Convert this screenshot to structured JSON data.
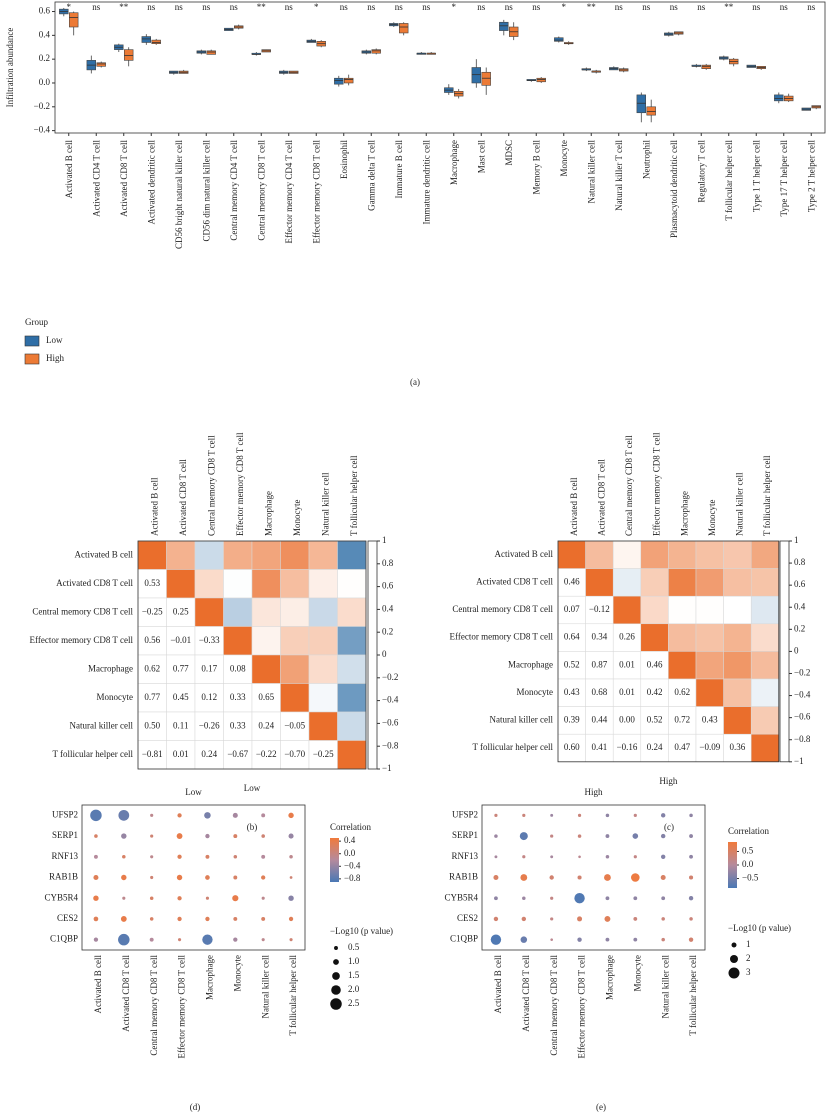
{
  "chart_data": [
    {
      "type": "box",
      "ylabel": "Infiltration abundance",
      "caption": "(a)",
      "categories": [
        "Activated B cell",
        "Activated CD4 T cell",
        "Activated CD8 T cell",
        "Activated dendritic cell",
        "CD56 bright natural killer cell",
        "CD56 dim natural killer cell",
        "Central memory CD4 T cell",
        "Central memory CD8 T cell",
        "Effector memory CD4 T cell",
        "Effector memory CD8 T cell",
        "Eosinophil",
        "Gamma delta T cell",
        "Immature B cell",
        "Immature dendritic cell",
        "Macrophage",
        "Mast cell",
        "MDSC",
        "Memory B cell",
        "Monocyte",
        "Natural killer cell",
        "Natural killer T cell",
        "Neutrophil",
        "Plasmacytoid dendritic cell",
        "Regulatory T cell",
        "T follicular helper cell",
        "Type 1 T helper cell",
        "Type 17 T helper cell",
        "Type 2 T helper cell"
      ],
      "significance": [
        "*",
        "ns",
        "**",
        "ns",
        "ns",
        "ns",
        "ns",
        "**",
        "ns",
        "*",
        "ns",
        "ns",
        "ns",
        "ns",
        "*",
        "ns",
        "ns",
        "ns",
        "*",
        "**",
        "ns",
        "ns",
        "ns",
        "ns",
        "**",
        "ns",
        "ns",
        "ns"
      ],
      "ylim": [
        -0.42,
        0.68
      ],
      "yticks": [
        {
          "value": -0.4,
          "label": "−0.4"
        },
        {
          "value": -0.2,
          "label": "−0.2"
        },
        {
          "value": 0,
          "label": "0.0"
        },
        0.2,
        0.4,
        0.6
      ],
      "legend": {
        "title": "Group"
      },
      "series": [
        {
          "name": "Low",
          "color": "#2f6ea6",
          "min": [
            0.56,
            0.08,
            0.26,
            0.32,
            0.07,
            0.24,
            0.44,
            0.23,
            0.07,
            0.34,
            -0.03,
            0.24,
            0.47,
            0.24,
            -0.1,
            -0.04,
            0.4,
            0.01,
            0.34,
            0.1,
            0.11,
            -0.33,
            0.39,
            0.13,
            0.19,
            0.13,
            -0.17,
            -0.23
          ],
          "q1": [
            0.58,
            0.11,
            0.28,
            0.34,
            0.08,
            0.25,
            0.44,
            0.24,
            0.08,
            0.34,
            -0.01,
            0.25,
            0.48,
            0.24,
            -0.08,
            0.0,
            0.44,
            0.02,
            0.35,
            0.11,
            0.11,
            -0.25,
            0.4,
            0.14,
            0.2,
            0.13,
            -0.15,
            -0.23
          ],
          "median": [
            0.6,
            0.15,
            0.3,
            0.37,
            0.09,
            0.26,
            0.45,
            0.24,
            0.09,
            0.35,
            0.02,
            0.26,
            0.49,
            0.25,
            -0.06,
            0.07,
            0.48,
            0.02,
            0.36,
            0.11,
            0.12,
            -0.17,
            0.41,
            0.14,
            0.21,
            0.14,
            -0.13,
            -0.22
          ],
          "q3": [
            0.62,
            0.19,
            0.32,
            0.39,
            0.1,
            0.27,
            0.46,
            0.25,
            0.1,
            0.36,
            0.04,
            0.27,
            0.5,
            0.25,
            -0.04,
            0.13,
            0.51,
            0.03,
            0.38,
            0.12,
            0.13,
            -0.1,
            0.42,
            0.15,
            0.22,
            0.15,
            -0.1,
            -0.21
          ],
          "max": [
            0.63,
            0.23,
            0.33,
            0.41,
            0.1,
            0.28,
            0.46,
            0.26,
            0.11,
            0.37,
            0.06,
            0.28,
            0.51,
            0.26,
            -0.01,
            0.2,
            0.53,
            0.03,
            0.39,
            0.13,
            0.14,
            -0.08,
            0.43,
            0.16,
            0.23,
            0.15,
            -0.08,
            -0.21
          ]
        },
        {
          "name": "High",
          "color": "#ec7a35",
          "min": [
            0.4,
            0.13,
            0.14,
            0.32,
            0.08,
            0.24,
            0.45,
            0.26,
            0.08,
            0.3,
            -0.02,
            0.24,
            0.4,
            0.24,
            -0.13,
            -0.1,
            0.36,
            0.0,
            0.32,
            0.08,
            0.09,
            -0.33,
            0.4,
            0.11,
            0.14,
            0.11,
            -0.16,
            -0.22
          ],
          "q1": [
            0.47,
            0.14,
            0.19,
            0.33,
            0.08,
            0.24,
            0.46,
            0.26,
            0.08,
            0.31,
            0.0,
            0.25,
            0.42,
            0.24,
            -0.11,
            -0.02,
            0.39,
            0.01,
            0.33,
            0.09,
            0.1,
            -0.27,
            0.41,
            0.12,
            0.16,
            0.12,
            -0.15,
            -0.21
          ],
          "median": [
            0.55,
            0.16,
            0.23,
            0.34,
            0.09,
            0.26,
            0.47,
            0.27,
            0.09,
            0.33,
            0.03,
            0.27,
            0.47,
            0.25,
            -0.09,
            0.04,
            0.43,
            0.03,
            0.33,
            0.1,
            0.11,
            -0.24,
            0.42,
            0.14,
            0.18,
            0.13,
            -0.13,
            -0.2
          ],
          "q3": [
            0.59,
            0.17,
            0.28,
            0.36,
            0.1,
            0.27,
            0.48,
            0.28,
            0.1,
            0.35,
            0.04,
            0.28,
            0.5,
            0.25,
            -0.07,
            0.09,
            0.47,
            0.04,
            0.34,
            0.1,
            0.12,
            -0.2,
            0.43,
            0.15,
            0.2,
            0.14,
            -0.11,
            -0.19
          ],
          "max": [
            0.6,
            0.18,
            0.3,
            0.37,
            0.11,
            0.28,
            0.49,
            0.28,
            0.1,
            0.36,
            0.07,
            0.29,
            0.51,
            0.26,
            -0.05,
            0.13,
            0.51,
            0.05,
            0.35,
            0.11,
            0.13,
            -0.14,
            0.43,
            0.16,
            0.21,
            0.14,
            -0.09,
            -0.19
          ]
        }
      ]
    },
    {
      "type": "heatmap",
      "xlabel": "Low",
      "caption": "(b)",
      "categories": [
        "Activated B cell",
        "Activated CD8 T cell",
        "Central memory CD8 T cell",
        "Effector memory CD8 T cell",
        "Macrophage",
        "Monocyte",
        "Natural killer cell",
        "T follicular helper cell"
      ],
      "values": [
        [
          1
        ],
        [
          0.53,
          1
        ],
        [
          -0.25,
          0.25,
          1
        ],
        [
          0.56,
          -0.01,
          -0.33,
          1
        ],
        [
          0.62,
          0.77,
          0.17,
          0.08,
          1
        ],
        [
          0.77,
          0.45,
          0.12,
          0.33,
          0.65,
          1
        ],
        [
          0.5,
          0.11,
          -0.26,
          0.33,
          0.24,
          -0.05,
          1
        ],
        [
          -0.81,
          0.01,
          0.24,
          -0.67,
          -0.22,
          -0.7,
          -0.25,
          1
        ]
      ],
      "value_labels": [
        [
          null
        ],
        [
          "0.53",
          null
        ],
        [
          "−0.25",
          "0.25",
          null
        ],
        [
          "0.56",
          "−0.01",
          "−0.33",
          null
        ],
        [
          "0.62",
          "0.77",
          "0.17",
          "0.08",
          null
        ],
        [
          "0.77",
          "0.45",
          "0.12",
          "0.33",
          "0.65",
          null
        ],
        [
          "0.50",
          "0.11",
          "−0.26",
          "0.33",
          "0.24",
          "−0.05",
          null
        ],
        [
          "−0.81",
          "0.01",
          "0.24",
          "−0.67",
          "−0.22",
          "−0.70",
          "−0.25",
          null
        ]
      ],
      "clim": [
        -1,
        1
      ],
      "cticks": [
        1,
        0.8,
        0.6,
        0.4,
        0.2,
        0,
        {
          "value": -0.2,
          "label": "−0.2"
        },
        {
          "value": -0.4,
          "label": "−0.4"
        },
        {
          "value": -0.6,
          "label": "−0.6"
        },
        {
          "value": -0.8,
          "label": "−0.8"
        },
        {
          "value": -1,
          "label": "−1"
        }
      ]
    },
    {
      "type": "heatmap",
      "xlabel": "High",
      "caption": "(c)",
      "categories": [
        "Activated B cell",
        "Activated CD8 T cell",
        "Central memory CD8 T cell",
        "Effector memory CD8 T cell",
        "Macrophage",
        "Monocyte",
        "Natural killer cell",
        "T follicular helper cell"
      ],
      "values": [
        [
          1
        ],
        [
          0.46,
          1
        ],
        [
          0.07,
          -0.12,
          1
        ],
        [
          0.64,
          0.34,
          0.26,
          1
        ],
        [
          0.52,
          0.87,
          0.01,
          0.46,
          1
        ],
        [
          0.43,
          0.68,
          0.01,
          0.42,
          0.62,
          1
        ],
        [
          0.39,
          0.44,
          0,
          0.52,
          0.72,
          0.43,
          1
        ],
        [
          0.6,
          0.41,
          -0.16,
          0.24,
          0.47,
          -0.09,
          0.36,
          1
        ]
      ],
      "value_labels": [
        [
          null
        ],
        [
          "0.46",
          null
        ],
        [
          "0.07",
          "−0.12",
          null
        ],
        [
          "0.64",
          "0.34",
          "0.26",
          null
        ],
        [
          "0.52",
          "0.87",
          "0.01",
          "0.46",
          null
        ],
        [
          "0.43",
          "0.68",
          "0.01",
          "0.42",
          "0.62",
          null
        ],
        [
          "0.39",
          "0.44",
          "0.00",
          "0.52",
          "0.72",
          "0.43",
          null
        ],
        [
          "0.60",
          "0.41",
          "−0.16",
          "0.24",
          "0.47",
          "−0.09",
          "0.36",
          null
        ]
      ],
      "clim": [
        -1,
        1
      ],
      "cticks": [
        1,
        0.8,
        0.6,
        0.4,
        0.2,
        0,
        {
          "value": -0.2,
          "label": "−0.2"
        },
        {
          "value": -0.4,
          "label": "−0.4"
        },
        {
          "value": -0.6,
          "label": "−0.6"
        },
        {
          "value": -0.8,
          "label": "−0.8"
        },
        {
          "value": -1,
          "label": "−1"
        }
      ]
    },
    {
      "type": "dot",
      "title": "Low",
      "caption": "(d)",
      "color_label": "Correlation",
      "size_label": "−Log10 (p value)",
      "rows": [
        "UFSP2",
        "SERP1",
        "RNF13",
        "RAB1B",
        "CYB5R4",
        "CES2",
        "C1QBP"
      ],
      "columns": [
        "Activated B cell",
        "Activated CD8 T cell",
        "Central memory CD8 T cell",
        "Effector memory CD8 T cell",
        "Macrophage",
        "Monocyte",
        "Natural killer cell",
        "T follicular helper cell"
      ],
      "values": [
        [
          -0.8,
          -0.7,
          -0.1,
          0.3,
          -0.6,
          -0.3,
          -0.2,
          0.4
        ],
        [
          0.2,
          -0.4,
          0.1,
          0.4,
          -0.3,
          0.2,
          0.1,
          -0.4
        ],
        [
          -0.2,
          0.2,
          -0.1,
          0.3,
          0.2,
          0.1,
          -0.2,
          -0.1
        ],
        [
          0.3,
          0.4,
          0.1,
          0.4,
          0.3,
          0.2,
          0.3,
          0.1
        ],
        [
          0.4,
          -0.1,
          0.2,
          0.3,
          0.1,
          0.4,
          -0.1,
          -0.5
        ],
        [
          0.3,
          0.4,
          0.2,
          0.3,
          0.3,
          0.2,
          0.2,
          0.3
        ],
        [
          -0.3,
          -0.8,
          -0.2,
          0.1,
          -0.8,
          -0.3,
          -0.1,
          0.1
        ]
      ],
      "sizes": [
        [
          2.5,
          2.3,
          0.3,
          0.6,
          1.2,
          0.8,
          0.5,
          0.9
        ],
        [
          0.4,
          0.9,
          0.3,
          1.0,
          0.6,
          0.5,
          0.4,
          0.8
        ],
        [
          0.5,
          0.4,
          0.3,
          0.6,
          0.5,
          0.4,
          0.5,
          0.4
        ],
        [
          0.8,
          0.9,
          0.3,
          0.9,
          0.7,
          0.5,
          0.6,
          0.2
        ],
        [
          0.9,
          0.3,
          0.4,
          0.6,
          0.3,
          1.1,
          0.3,
          0.9
        ],
        [
          0.7,
          1.0,
          0.4,
          0.6,
          0.6,
          0.5,
          0.5,
          0.6
        ],
        [
          0.6,
          2.5,
          0.5,
          0.3,
          2.2,
          0.6,
          0.3,
          0.3
        ]
      ],
      "clim": [
        -0.9,
        0.5
      ],
      "cticks": [
        0.4,
        {
          "value": 0,
          "label": "0.0"
        },
        {
          "value": -0.4,
          "label": "−0.4"
        },
        {
          "value": -0.8,
          "label": "−0.8"
        }
      ],
      "size_ticks": [
        0.5,
        {
          "value": 1,
          "label": "1.0"
        },
        1.5,
        {
          "value": 2,
          "label": "2.0"
        },
        2.5
      ]
    },
    {
      "type": "dot",
      "title": "High",
      "caption": "(e)",
      "color_label": "Correlation",
      "size_label": "−Log10 (p value)",
      "rows": [
        "UFSP2",
        "SERP1",
        "RNF13",
        "RAB1B",
        "CYB5R4",
        "CES2",
        "C1QBP"
      ],
      "columns": [
        "Activated B cell",
        "Activated CD8 T cell",
        "Central memory CD8 T cell",
        "Effector memory CD8 T cell",
        "Macrophage",
        "Monocyte",
        "Natural killer cell",
        "T follicular helper cell"
      ],
      "values": [
        [
          0.3,
          0.3,
          -0.2,
          0.3,
          -0.3,
          0.2,
          -0.4,
          -0.3
        ],
        [
          -0.2,
          -0.7,
          0.2,
          0.3,
          -0.3,
          -0.5,
          -0.4,
          -0.3
        ],
        [
          -0.1,
          0.2,
          -0.1,
          0.1,
          -0.2,
          0.2,
          -0.4,
          -0.3
        ],
        [
          0.5,
          0.7,
          0.4,
          0.4,
          0.7,
          0.8,
          0.5,
          0.4
        ],
        [
          -0.3,
          -0.2,
          0.2,
          -0.8,
          -0.3,
          -0.3,
          -0.3,
          -0.4
        ],
        [
          0.4,
          0.4,
          0.2,
          0.5,
          0.6,
          0.3,
          0.3,
          0.3
        ],
        [
          -0.8,
          -0.6,
          0.1,
          -0.4,
          -0.3,
          -0.3,
          0.3,
          0.4
        ]
      ],
      "sizes": [
        [
          0.4,
          0.4,
          0.3,
          0.4,
          0.5,
          0.4,
          0.8,
          0.5
        ],
        [
          0.5,
          2.0,
          0.4,
          0.5,
          0.6,
          1.2,
          0.8,
          0.6
        ],
        [
          0.3,
          0.4,
          0.3,
          0.2,
          0.5,
          0.4,
          0.8,
          0.6
        ],
        [
          1.0,
          1.6,
          0.8,
          0.7,
          1.6,
          2.2,
          1.0,
          0.7
        ],
        [
          0.6,
          0.5,
          0.4,
          2.8,
          0.6,
          0.6,
          0.6,
          0.8
        ],
        [
          0.8,
          0.8,
          0.4,
          1.0,
          1.3,
          0.6,
          0.5,
          0.5
        ],
        [
          2.8,
          1.5,
          0.2,
          0.8,
          0.6,
          0.6,
          0.5,
          0.8
        ]
      ],
      "clim": [
        -0.85,
        0.85
      ],
      "cticks": [
        0.5,
        {
          "value": 0,
          "label": "0.0"
        },
        {
          "value": -0.5,
          "label": "−0.5"
        }
      ],
      "size_ticks": [
        1,
        2,
        3
      ]
    }
  ]
}
